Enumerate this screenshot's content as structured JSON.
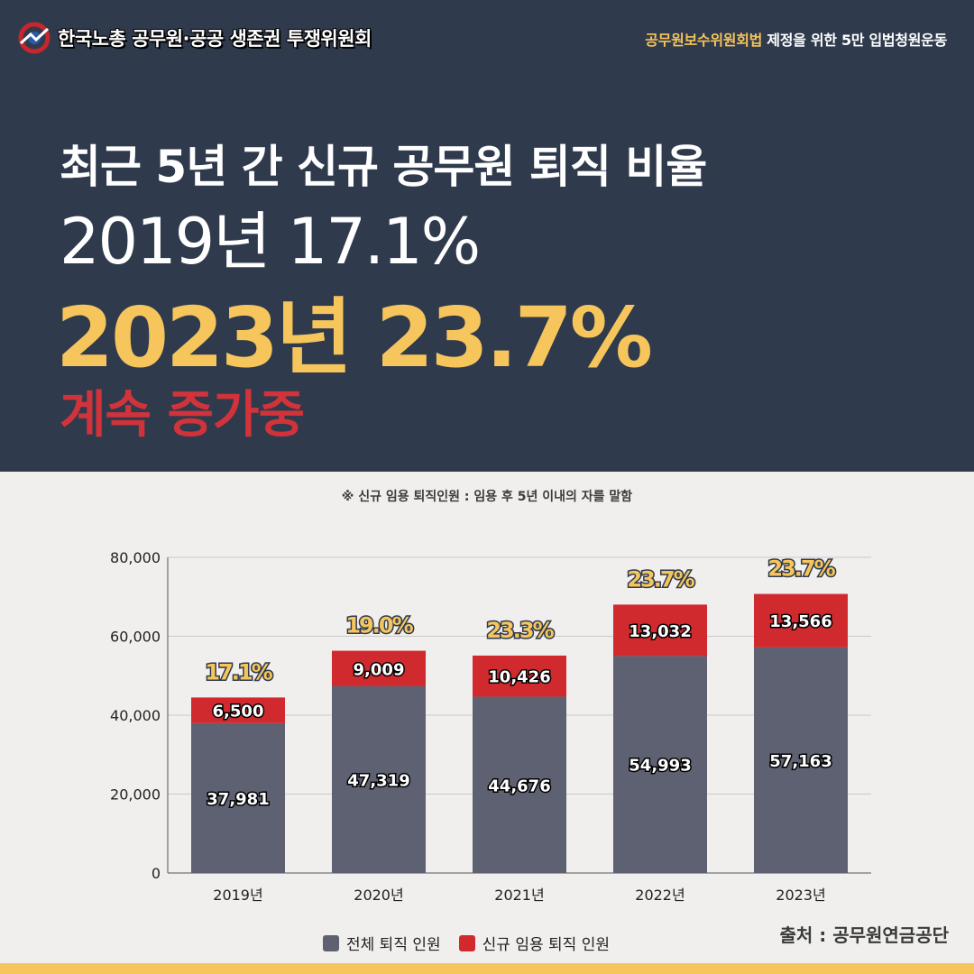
{
  "header": {
    "org_name": "한국노총 공무원·공공 생존권 투쟁위원회",
    "campaign_highlight": "공무원보수위원회법",
    "campaign_rest": " 제정을 위한 5만 입법청원운동"
  },
  "headline": {
    "line1": "최근 5년 간 신규 공무원 퇴직 비율",
    "line2": "2019년 17.1%",
    "line3": "2023년 23.7%",
    "line4": "계속 증가중"
  },
  "note": "※ 신규 임용 퇴직인원 : 임용 후 5년 이내의 자를 말함",
  "source": "출처 : 공무원연금공단",
  "colors": {
    "total": "#5d6171",
    "new": "#d02a2f",
    "accent": "#f6c65c",
    "background_top": "#2f3a4d"
  },
  "chart_data": {
    "type": "bar",
    "stacked": true,
    "categories": [
      "2019년",
      "2020년",
      "2021년",
      "2022년",
      "2023년"
    ],
    "series": [
      {
        "name": "전체 퇴직 인원",
        "values": [
          37981,
          47319,
          44676,
          54993,
          57163
        ],
        "labels": [
          "37,981",
          "47,319",
          "44,676",
          "54,993",
          "57,163"
        ]
      },
      {
        "name": "신규 임용 퇴직 인원",
        "values": [
          6500,
          9009,
          10426,
          13032,
          13566
        ],
        "labels": [
          "6,500",
          "9,009",
          "10,426",
          "13,032",
          "13,566"
        ]
      }
    ],
    "annotations": [
      "17.1%",
      "19.0%",
      "23.3%",
      "23.7%",
      "23.7%"
    ],
    "yticks": [
      "0",
      "20,000",
      "40,000",
      "60,000",
      "80,000"
    ],
    "ylim": [
      0,
      80000
    ],
    "grid": true,
    "legend": "bottom"
  }
}
